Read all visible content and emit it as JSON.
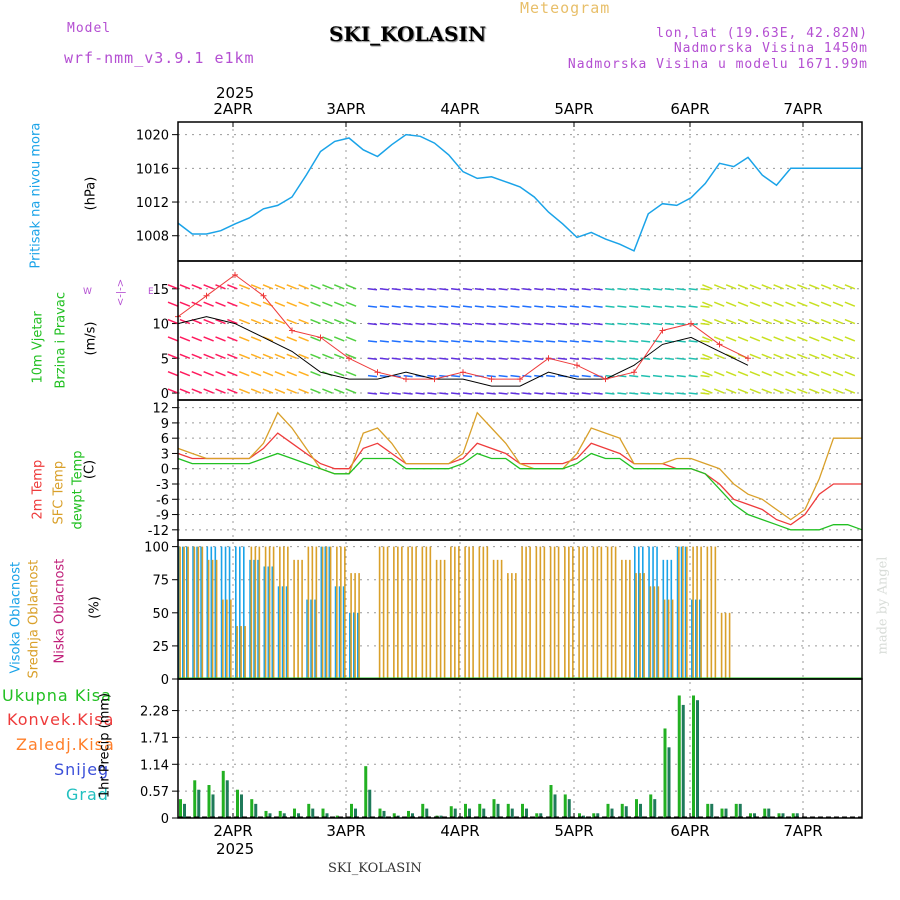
{
  "header": {
    "model_label": "Model",
    "model_name": "wrf-nmm_v3.9.1 e1km",
    "title": "Meteogram",
    "station": "SKI_KOLASIN",
    "coords": "lon,lat (19.63E, 42.82N)",
    "altitude": "Nadmorska Visina 1450m",
    "model_altitude": "Nadmorska Visina u modelu 1671.99m",
    "footer_station": "SKI_KOLASIN",
    "credit": "made by Angel"
  },
  "colors": {
    "pressure": "#1aa3e8",
    "temp2m": "#ee3b3b",
    "sfc": "#d9a02a",
    "dewpt": "#22c022",
    "high_cloud": "#1aa3e8",
    "mid_cloud": "#d9a02a",
    "low_cloud": "#c0207a",
    "total_precip": "#22b022",
    "conv_precip": "#ee3b3b",
    "frz_precip": "#ff7f2a",
    "snow": "#3b4fd9",
    "graupel": "#22c0c0",
    "wind_ticks": "#b44fd2"
  },
  "axis": {
    "year": "2025",
    "days": [
      "2APR",
      "3APR",
      "4APR",
      "5APR",
      "6APR",
      "7APR"
    ]
  },
  "panels": {
    "pressure": {
      "labels": [
        "Pritisak na nivou mora"
      ],
      "unit": "(hPa)",
      "ticks": [
        "1020",
        "1016",
        "1012",
        "1008"
      ]
    },
    "wind": {
      "labels": [
        "10m Vjetar",
        "Brzina i Pravac"
      ],
      "unit": "(m/s)",
      "ticks": [
        "15",
        "10",
        "5",
        "0"
      ],
      "compass": {
        "n": "N",
        "w": "W",
        "e": "E",
        "s": "S",
        "arrows": "<-|->"
      }
    },
    "temp": {
      "labels": [
        "2m Temp",
        "SFC Temp",
        "dewpt Temp"
      ],
      "unit": "(C)",
      "ticks": [
        "12",
        "9",
        "6",
        "3",
        "0",
        "-3",
        "-6",
        "-9",
        "-12"
      ]
    },
    "cloud": {
      "labels": [
        "Visoka Oblacnost",
        "Srednja Oblacnost",
        "Niska Oblacnost"
      ],
      "unit": "(%)",
      "ticks": [
        "100",
        "75",
        "50",
        "25",
        "0"
      ]
    },
    "precip": {
      "labels": [
        "Ukupna Kisa",
        "Konvek.Kisa",
        "Zaledj.Kisa",
        "Snijeg",
        "Grad"
      ],
      "unit": "1hr Precip (mm)",
      "ticks": [
        "2.28",
        "1.71",
        "1.14",
        "0.57",
        "0"
      ]
    }
  },
  "chart_data": [
    {
      "type": "line",
      "title": "",
      "ylabel": "(hPa)",
      "ylim": [
        1005,
        1021.5
      ],
      "x_hours": [
        0,
        3,
        6,
        9,
        12,
        15,
        18,
        21,
        24,
        27,
        30,
        33,
        36,
        39,
        42,
        45,
        48,
        51,
        54,
        57,
        60,
        63,
        66,
        69,
        72,
        75,
        78,
        81,
        84,
        87,
        90,
        93,
        96,
        99,
        102,
        105,
        108,
        111,
        114,
        117,
        120,
        123,
        126,
        129,
        132,
        135,
        138,
        141,
        144
      ],
      "series": [
        {
          "name": "Pritisak na nivou mora",
          "values": [
            1009.5,
            1008.2,
            1008.2,
            1008.6,
            1009.4,
            1010.1,
            1011.2,
            1011.6,
            1012.6,
            1015.2,
            1018.0,
            1019.2,
            1019.6,
            1018.2,
            1017.4,
            1018.8,
            1020.0,
            1019.8,
            1019.0,
            1017.6,
            1015.6,
            1014.8,
            1015.0,
            1014.4,
            1013.8,
            1012.6,
            1010.8,
            1009.4,
            1007.8,
            1008.4,
            1007.6,
            1007.0,
            1006.2,
            1010.6,
            1011.8,
            1011.6,
            1012.5,
            1014.2,
            1016.6,
            1016.2,
            1017.3,
            1015.2,
            1014.0,
            1016.0,
            1016.0,
            1016.0,
            1016.0,
            1016.0,
            1016.0
          ]
        }
      ]
    },
    {
      "type": "line",
      "title": "",
      "ylabel": "(m/s)",
      "ylim": [
        -1,
        19
      ],
      "x_hours": [
        0,
        6,
        12,
        18,
        24,
        30,
        36,
        42,
        48,
        54,
        60,
        66,
        72,
        78,
        84,
        90,
        96,
        102,
        108,
        114,
        120
      ],
      "series": [
        {
          "name": "10m wind speed (+)",
          "values": [
            11,
            14,
            17,
            14,
            9,
            8,
            5,
            3,
            2,
            2,
            3,
            2,
            2,
            5,
            4,
            2,
            3,
            9,
            10,
            7,
            5
          ]
        },
        {
          "name": "mean wind (black)",
          "values": [
            10,
            11,
            10,
            8,
            6,
            3,
            2,
            2,
            3,
            2,
            2,
            1,
            1,
            3,
            2,
            2,
            4,
            7,
            8,
            6,
            4
          ]
        }
      ]
    },
    {
      "type": "line",
      "title": "",
      "ylabel": "(C)",
      "ylim": [
        -14,
        13.5
      ],
      "x_hours": [
        0,
        3,
        6,
        9,
        12,
        15,
        18,
        21,
        24,
        27,
        30,
        33,
        36,
        39,
        42,
        45,
        48,
        51,
        54,
        57,
        60,
        63,
        66,
        69,
        72,
        75,
        78,
        81,
        84,
        87,
        90,
        93,
        96,
        99,
        102,
        105,
        108,
        111,
        114,
        117,
        120,
        123,
        126,
        129,
        132,
        135,
        138,
        141,
        144
      ],
      "series": [
        {
          "name": "2m Temp",
          "values": [
            3,
            2,
            2,
            2,
            2,
            2,
            4,
            7,
            5,
            3,
            1,
            0,
            0,
            4,
            5,
            3,
            1,
            1,
            1,
            1,
            2,
            5,
            4,
            3,
            1,
            1,
            1,
            1,
            2,
            5,
            4,
            3,
            1,
            1,
            1,
            0,
            0,
            -1,
            -3,
            -6,
            -7,
            -8,
            -10,
            -11,
            -9,
            -5,
            -3,
            -3,
            -3
          ]
        },
        {
          "name": "SFC Temp",
          "values": [
            4,
            3,
            2,
            2,
            2,
            2,
            5,
            11,
            8,
            4,
            0,
            -1,
            -1,
            7,
            8,
            5,
            1,
            1,
            1,
            1,
            3,
            11,
            8,
            5,
            1,
            0,
            0,
            0,
            3,
            8,
            7,
            6,
            1,
            1,
            1,
            2,
            2,
            1,
            0,
            -3,
            -5,
            -6,
            -8,
            -10,
            -8,
            -2,
            6,
            6,
            6
          ]
        },
        {
          "name": "dewpt Temp",
          "values": [
            2,
            1,
            1,
            1,
            1,
            1,
            2,
            3,
            2,
            1,
            0,
            -1,
            -1,
            2,
            2,
            2,
            0,
            0,
            0,
            0,
            1,
            3,
            2,
            2,
            0,
            0,
            0,
            0,
            1,
            3,
            2,
            2,
            0,
            0,
            0,
            0,
            0,
            -1,
            -4,
            -7,
            -9,
            -10,
            -11,
            -12,
            -12,
            -12,
            -11,
            -11,
            -12
          ]
        }
      ]
    },
    {
      "type": "bar",
      "title": "",
      "ylabel": "(%)",
      "ylim": [
        0,
        105
      ],
      "x_hours": [
        0,
        3,
        6,
        9,
        12,
        15,
        18,
        21,
        24,
        27,
        30,
        33,
        36,
        39,
        42,
        45,
        48,
        51,
        54,
        57,
        60,
        63,
        66,
        69,
        72,
        75,
        78,
        81,
        84,
        87,
        90,
        93,
        96,
        99,
        102,
        105,
        108,
        111,
        114,
        117,
        120,
        123,
        126,
        129,
        132,
        135,
        138,
        141,
        144
      ],
      "series": [
        {
          "name": "Visoka Oblacnost",
          "values": [
            100,
            100,
            100,
            100,
            100,
            90,
            85,
            70,
            0,
            60,
            100,
            70,
            50,
            0,
            0,
            0,
            0,
            0,
            0,
            0,
            0,
            0,
            0,
            0,
            0,
            0,
            0,
            0,
            0,
            0,
            0,
            0,
            100,
            100,
            90,
            100,
            60,
            0,
            0,
            0,
            0,
            0,
            0,
            0,
            0,
            0,
            0,
            0,
            0
          ]
        },
        {
          "name": "Srednja Oblacnost",
          "values": [
            100,
            100,
            90,
            60,
            40,
            100,
            100,
            100,
            90,
            100,
            100,
            100,
            80,
            0,
            100,
            100,
            100,
            100,
            90,
            100,
            100,
            100,
            90,
            80,
            100,
            100,
            100,
            100,
            100,
            100,
            100,
            90,
            80,
            70,
            60,
            100,
            100,
            100,
            50,
            0,
            0,
            0,
            0,
            0,
            0,
            0,
            0,
            0,
            0
          ]
        },
        {
          "name": "Niska Oblacnost",
          "values": [
            0,
            0,
            0,
            0,
            0,
            0,
            0,
            0,
            0,
            0,
            0,
            0,
            0,
            0,
            0,
            0,
            0,
            0,
            0,
            0,
            0,
            0,
            0,
            0,
            0,
            0,
            0,
            0,
            0,
            0,
            0,
            0,
            0,
            0,
            0,
            0,
            0,
            0,
            0,
            0,
            0,
            0,
            0,
            0,
            0,
            0,
            0,
            0,
            0
          ]
        }
      ]
    },
    {
      "type": "bar",
      "title": "",
      "ylabel": "1hr Precip (mm)",
      "ylim": [
        0,
        2.95
      ],
      "x_hours": [
        0,
        3,
        6,
        9,
        12,
        15,
        18,
        21,
        24,
        27,
        30,
        33,
        36,
        39,
        42,
        45,
        48,
        51,
        54,
        57,
        60,
        63,
        66,
        69,
        72,
        75,
        78,
        81,
        84,
        87,
        90,
        93,
        96,
        99,
        102,
        105,
        108,
        111,
        114,
        117,
        120,
        123,
        126,
        129,
        132,
        135,
        138,
        141,
        144
      ],
      "series": [
        {
          "name": "Ukupna Kisa",
          "values": [
            0.4,
            0.8,
            0.7,
            1.0,
            0.6,
            0.4,
            0.15,
            0.15,
            0.2,
            0.3,
            0.2,
            0.05,
            0.3,
            1.1,
            0.2,
            0.1,
            0.15,
            0.3,
            0.05,
            0.25,
            0.3,
            0.3,
            0.4,
            0.3,
            0.3,
            0.1,
            0.7,
            0.5,
            0.1,
            0.1,
            0.3,
            0.3,
            0.4,
            0.5,
            1.9,
            2.6,
            2.6,
            0.3,
            0.2,
            0.3,
            0.1,
            0.2,
            0.1,
            0.1,
            0,
            0,
            0,
            0,
            0
          ]
        },
        {
          "name": "Snijeg",
          "values": [
            0.3,
            0.6,
            0.5,
            0.8,
            0.5,
            0.3,
            0.1,
            0.1,
            0.1,
            0.2,
            0.1,
            0.03,
            0.2,
            0.6,
            0.15,
            0.05,
            0.1,
            0.2,
            0.05,
            0.2,
            0.2,
            0.2,
            0.3,
            0.2,
            0.2,
            0.1,
            0.5,
            0.4,
            0.05,
            0.1,
            0.2,
            0.25,
            0.3,
            0.4,
            1.5,
            2.4,
            2.5,
            0.3,
            0.2,
            0.3,
            0.1,
            0.2,
            0.1,
            0.1,
            0,
            0,
            0,
            0,
            0
          ]
        }
      ]
    }
  ]
}
